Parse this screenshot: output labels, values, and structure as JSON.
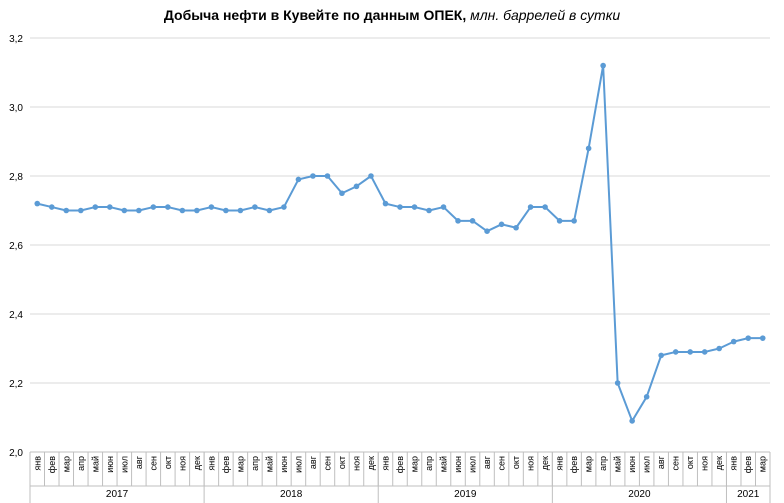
{
  "chart_data": {
    "type": "line",
    "title": "Добыча  нефти в Кувейте по данным  ОПЕК,",
    "title_unit": "млн. баррелей в сутки",
    "xlabel": "",
    "ylabel": "",
    "ylim": [
      2.0,
      3.2
    ],
    "yticks": [
      "2,0",
      "2,2",
      "2,4",
      "2,6",
      "2,8",
      "3,0",
      "3,2"
    ],
    "grid": true,
    "legend": "none",
    "line_color": "#5B9BD5",
    "months": [
      "янв",
      "фев",
      "мар",
      "апр",
      "май",
      "июн",
      "июл",
      "авг",
      "сен",
      "окт",
      "ноя",
      "дек"
    ],
    "years": [
      {
        "label": "2017",
        "count": 12
      },
      {
        "label": "2018",
        "count": 12
      },
      {
        "label": "2019",
        "count": 12
      },
      {
        "label": "2020",
        "count": 12
      },
      {
        "label": "2021",
        "count": 3
      }
    ],
    "series": [
      {
        "values": [
          2.72,
          2.71,
          2.7,
          2.7,
          2.71,
          2.71,
          2.7,
          2.7,
          2.71,
          2.71,
          2.7,
          2.7,
          2.71,
          2.7,
          2.7,
          2.71,
          2.7,
          2.71,
          2.79,
          2.8,
          2.8,
          2.75,
          2.77,
          2.8,
          2.72,
          2.71,
          2.71,
          2.7,
          2.71,
          2.67,
          2.67,
          2.64,
          2.66,
          2.65,
          2.71,
          2.71,
          2.67,
          2.67,
          2.88,
          3.12,
          2.2,
          2.09,
          2.16,
          2.28,
          2.29,
          2.29,
          2.29,
          2.3,
          2.32,
          2.33,
          2.33
        ]
      }
    ]
  }
}
